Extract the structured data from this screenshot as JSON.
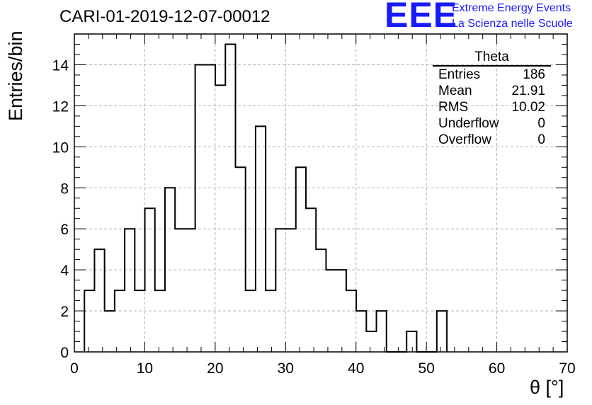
{
  "header": {
    "title": "CARI-01-2019-12-07-00012",
    "logo_text": "EEE",
    "logo_line1": "Extreme Energy Events",
    "logo_line2": "La Scienza nelle Scuole"
  },
  "stats": {
    "title": "Theta",
    "rows": [
      {
        "label": "Entries",
        "value": "186"
      },
      {
        "label": "Mean",
        "value": "21.91"
      },
      {
        "label": "RMS",
        "value": "10.02"
      },
      {
        "label": "Underflow",
        "value": "0"
      },
      {
        "label": "Overflow",
        "value": "0"
      }
    ]
  },
  "colors": {
    "logo": "#1a1aff",
    "line": "#000000",
    "grid": "#b0b0b0"
  },
  "chart_data": {
    "type": "bar",
    "style": "step-histogram",
    "xlabel": "θ [°]",
    "ylabel": "Entries/bin",
    "xlim": [
      0,
      70
    ],
    "ylim": [
      0,
      15.5
    ],
    "grid": true,
    "xticks": [
      0,
      10,
      20,
      30,
      40,
      50,
      60,
      70
    ],
    "yticks": [
      0,
      2,
      4,
      6,
      8,
      10,
      12,
      14
    ],
    "bin_width": 1.43,
    "x_start": 1.43,
    "values": [
      3,
      5,
      2,
      3,
      6,
      3,
      7,
      3,
      8,
      6,
      6,
      14,
      14,
      13,
      15,
      9,
      3,
      11,
      3,
      6,
      6,
      9,
      7,
      5,
      4,
      4,
      3,
      2,
      1,
      2,
      0,
      0,
      1,
      0,
      0,
      2
    ]
  }
}
